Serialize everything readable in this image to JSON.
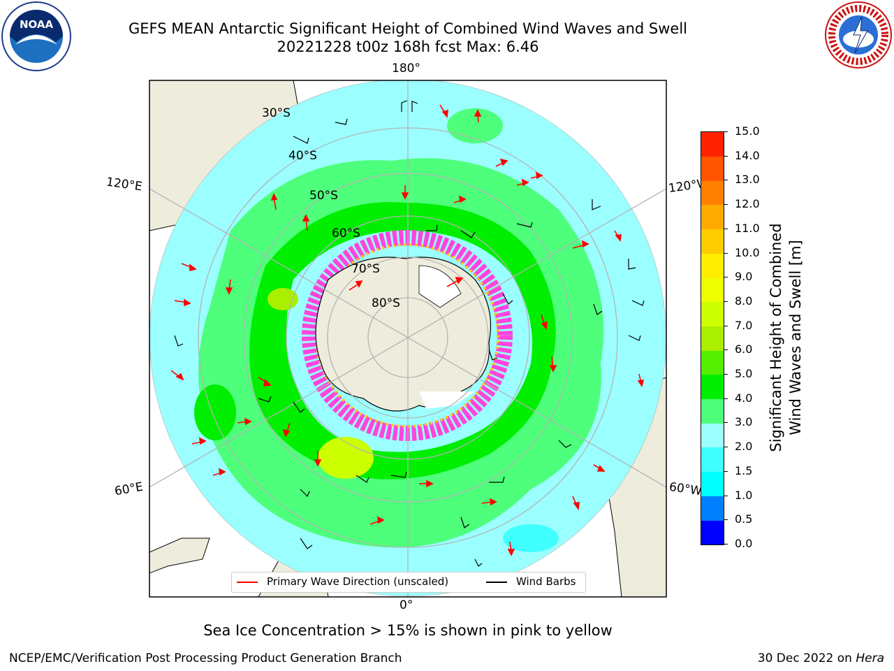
{
  "title": {
    "line1": "GEFS MEAN Antarctic Significant Height of Combined Wind Waves and Swell",
    "line2": "20221228 t00z 168h fcst   Max: 6.46"
  },
  "map": {
    "projection": "south-polar-stereographic",
    "lon_labels": {
      "top": "180°",
      "bottom": "0°",
      "left_upper": "120°E",
      "left_lower": "60°E",
      "right_upper": "120°W",
      "right_lower": "60°W"
    },
    "lat_labels": [
      "30°S",
      "40°S",
      "50°S",
      "60°S",
      "70°S",
      "80°S"
    ],
    "colors": {
      "land": "#eeecdc",
      "ocean_low": "#9bffff",
      "ocean_mid": "#4dff7a",
      "ocean_high": "#00ee00",
      "peak": "#ccff00",
      "ice": "#ff44dd",
      "wave_arrow": "#ff0000",
      "wind_barb": "#000000",
      "grid": "#b4b4b4"
    }
  },
  "legend": {
    "wave": "Primary Wave Direction (unscaled)",
    "wind": "Wind Barbs"
  },
  "colorbar": {
    "label_line1": "Significant Height of Combined",
    "label_line2": "Wind Waves and Swell [m]",
    "ticks": [
      "0.0",
      "0.5",
      "1.0",
      "1.5",
      "2.0",
      "3.0",
      "4.0",
      "5.0",
      "6.0",
      "7.0",
      "8.0",
      "9.0",
      "10.0",
      "11.0",
      "12.0",
      "13.0",
      "14.0",
      "15.0"
    ],
    "colors": [
      "#0000ff",
      "#0080ff",
      "#00ffff",
      "#40ffff",
      "#9bffff",
      "#4dff7a",
      "#00ee00",
      "#55ee00",
      "#aaee00",
      "#ccff00",
      "#eeff00",
      "#ffee00",
      "#ffcc00",
      "#ffaa00",
      "#ff8000",
      "#ff5500",
      "#ff2200"
    ]
  },
  "caption": "Sea Ice Concentration > 15% is shown in pink to yellow",
  "footer": {
    "left": "NCEP/EMC/Verification Post Processing Product Generation Branch",
    "date": "30 Dec 2022 on ",
    "machine": "Hera"
  },
  "logos": {
    "left": "NOAA",
    "right": "NATIONAL WEATHER SERVICE"
  }
}
